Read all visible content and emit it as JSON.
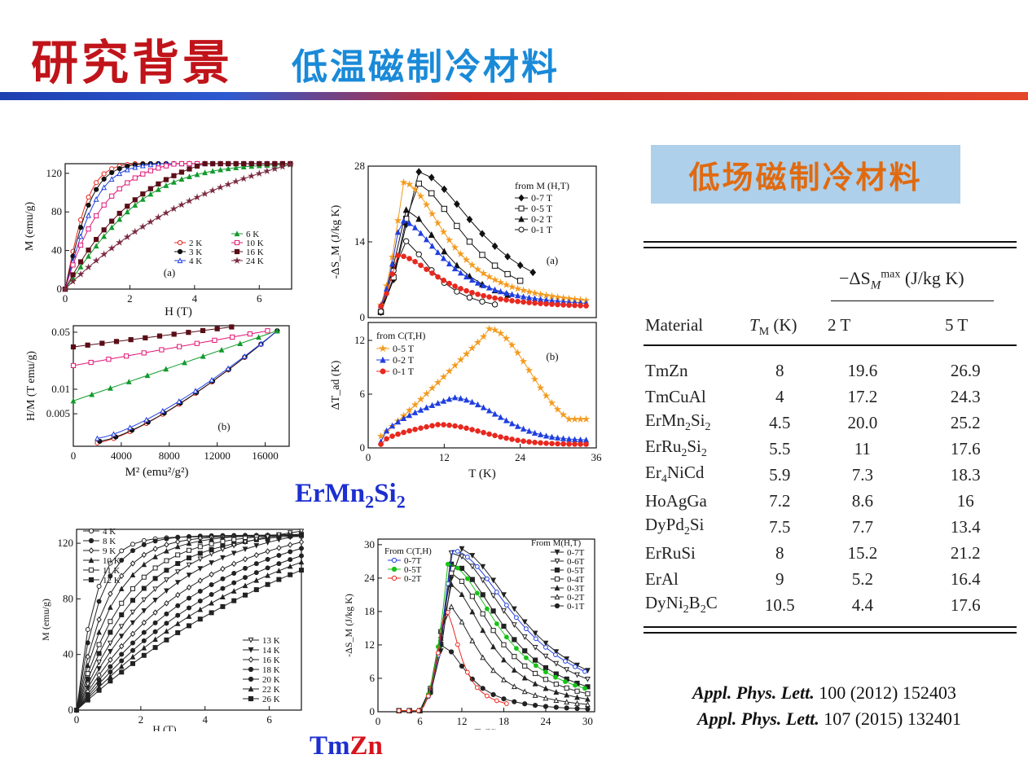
{
  "header": {
    "title": "研究背景",
    "subtitle": "低温磁制冷材料"
  },
  "badge": "低场磁制冷材料",
  "captions": {
    "ermn2si2": [
      "ErMn",
      "2",
      "Si",
      "2"
    ],
    "tmzn_tm": "Tm",
    "tmzn_zn": "Zn"
  },
  "colors": {
    "title_red": "#c0141a",
    "subtitle_blue": "#1a8ad8",
    "badge_bg": "#aed0ea",
    "badge_text": "#e06a10",
    "caption_blue": "#1d2fd0",
    "caption_red": "#d8131c"
  },
  "table": {
    "col_headers": {
      "material": "Material",
      "tm": "T",
      "tm_sub": "M",
      "tm_unit": " (K)",
      "group": "−ΔS",
      "group_sub": "M",
      "group_sup": "max",
      "group_unit": " (J/kg K)",
      "c2": "2 T",
      "c3": "5 T"
    },
    "rows": [
      {
        "m": [
          "TmZn"
        ],
        "tm": "8",
        "v2": "19.6",
        "v5": "26.9"
      },
      {
        "m": [
          "TmCuAl"
        ],
        "tm": "4",
        "v2": "17.2",
        "v5": "24.3"
      },
      {
        "m": [
          "ErMn",
          "2",
          "Si",
          "2"
        ],
        "tm": "4.5",
        "v2": "20.0",
        "v5": "25.2"
      },
      {
        "m": [
          "ErRu",
          "2",
          "Si",
          "2"
        ],
        "tm": "5.5",
        "v2": "11",
        "v5": "17.6"
      },
      {
        "m": [
          "Er",
          "4",
          "NiCd"
        ],
        "tm": "5.9",
        "v2": "7.3",
        "v5": "18.3"
      },
      {
        "m": [
          "HoAgGa"
        ],
        "tm": "7.2",
        "v2": "8.6",
        "v5": "16"
      },
      {
        "m": [
          "DyPd",
          "2",
          "Si"
        ],
        "tm": "7.5",
        "v2": "7.7",
        "v5": "13.4"
      },
      {
        "m": [
          "ErRuSi"
        ],
        "tm": "8",
        "v2": "15.2",
        "v5": "21.2"
      },
      {
        "m": [
          "ErAl"
        ],
        "tm": "9",
        "v2": "5.2",
        "v5": "16.4"
      },
      {
        "m": [
          "DyNi",
          "2",
          "B",
          "2",
          "C"
        ],
        "tm": "10.5",
        "v2": "4.4",
        "v5": "17.6"
      }
    ]
  },
  "references": [
    {
      "journal": "Appl. Phys. Lett.",
      "detail": " 100 (2012) 152403"
    },
    {
      "journal": "Appl. Phys. Lett.",
      "detail": " 107 (2015) 132401"
    }
  ],
  "chart_data": [
    {
      "type": "line",
      "id": "ermn-mh",
      "xlabel": "H (T)",
      "ylabel": "M (emu/g)",
      "xlim": [
        0,
        7
      ],
      "ylim": [
        0,
        130
      ],
      "xticks": [
        0,
        2,
        4,
        6
      ],
      "yticks": [
        0,
        40,
        80,
        120
      ],
      "panel_label": "(a)",
      "series": [
        {
          "name": "2 K",
          "color": "#e8281e",
          "marker": "circle-open",
          "Ms": 131,
          "a": 0.13
        },
        {
          "name": "3 K",
          "color": "#111111",
          "marker": "circle-filled",
          "Ms": 131,
          "a": 0.15
        },
        {
          "name": "4 K",
          "color": "#1f3ee0",
          "marker": "triangle-open",
          "Ms": 131,
          "a": 0.18
        },
        {
          "name": "6 K",
          "color": "#139a2c",
          "marker": "triangle-filled",
          "Ms": 131,
          "a": 0.45
        },
        {
          "name": "10 K",
          "color": "#e21577",
          "marker": "square-open",
          "Ms": 138,
          "a": 1.2
        },
        {
          "name": "16 K",
          "color": "#5a0e18",
          "marker": "square-filled",
          "Ms": 156,
          "a": 2.4
        },
        {
          "name": "24 K",
          "color": "#7a2a40",
          "marker": "star",
          "Ms": 175,
          "a": 5.2
        }
      ]
    },
    {
      "type": "line",
      "id": "ermn-arrott",
      "xlabel": "M² (emu²/g²)",
      "ylabel": "H/M (T emu/g)",
      "xlim": [
        0,
        18000
      ],
      "ylim": [
        0.002,
        0.06
      ],
      "yscale": "log",
      "xticks": [
        0,
        4000,
        8000,
        12000,
        16000
      ],
      "yticks": [
        0.005,
        0.01,
        0.05
      ],
      "panel_label": "(b)"
    },
    {
      "type": "line",
      "id": "ermn-ds",
      "xlabel": "",
      "ylabel": "-ΔS_M (J/kg K)",
      "xlim": [
        0,
        36
      ],
      "ylim": [
        0,
        28
      ],
      "yticks": [
        0,
        14,
        28
      ],
      "panel_label": "(a)",
      "legend_title": "from M (H,T)",
      "series": [
        {
          "name": "0-7 T",
          "color": "#111111",
          "marker": "diamond-filled",
          "peakT": 7.5,
          "peak": 26.5
        },
        {
          "name": "0-5 T",
          "color": "#111111",
          "marker": "square-open",
          "peakT": 7,
          "peak": 24.5
        },
        {
          "name": "0-2 T",
          "color": "#111111",
          "marker": "triangle-filled",
          "peakT": 5.5,
          "peak": 19.5
        },
        {
          "name": "0-1 T",
          "color": "#111111",
          "marker": "circle-open",
          "peakT": 5,
          "peak": 14
        },
        {
          "name": "",
          "color": "#f39a1e",
          "marker": "star",
          "peakT": 5.5,
          "peak": 23.5
        },
        {
          "name": "",
          "color": "#1f3ee0",
          "marker": "triangle-filled",
          "peakT": 5,
          "peak": 16.5
        },
        {
          "name": "",
          "color": "#e8281e",
          "marker": "circle-filled",
          "peakT": 4.5,
          "peak": 10
        }
      ]
    },
    {
      "type": "line",
      "id": "ermn-dt",
      "xlabel": "T (K)",
      "ylabel": "ΔT_ad (K)",
      "xlim": [
        0,
        36
      ],
      "ylim": [
        0,
        14
      ],
      "xticks": [
        0,
        12,
        24,
        36
      ],
      "yticks": [
        0,
        6,
        12
      ],
      "panel_label": "(b)",
      "legend_title": "from C(T,H)",
      "series": [
        {
          "name": "0-5 T",
          "color": "#f39a1e",
          "marker": "star",
          "peakT": 19,
          "peak": 13
        },
        {
          "name": "0-2 T",
          "color": "#1f3ee0",
          "marker": "triangle-filled",
          "peakT": 13,
          "peak": 5.5
        },
        {
          "name": "0-1 T",
          "color": "#e8281e",
          "marker": "circle-filled",
          "peakT": 11,
          "peak": 2.6
        }
      ]
    },
    {
      "type": "line",
      "id": "tmzn-mh",
      "xlabel": "H (T)",
      "ylabel": "M (emu/g)",
      "xlim": [
        0,
        7
      ],
      "ylim": [
        0,
        130
      ],
      "xticks": [
        0,
        2,
        4,
        6
      ],
      "yticks": [
        0,
        40,
        80,
        120
      ],
      "series": [
        {
          "name": "4 K",
          "marker": "circle-open"
        },
        {
          "name": "8 K",
          "marker": "circle-filled"
        },
        {
          "name": "9 K",
          "marker": "diamond-open"
        },
        {
          "name": "10 K",
          "marker": "triangle-filled"
        },
        {
          "name": "11 K",
          "marker": "square-open"
        },
        {
          "name": "12 K",
          "marker": "square-filled"
        },
        {
          "name": "13 K",
          "marker": "triangle-down-open"
        },
        {
          "name": "14 K",
          "marker": "triangle-down-filled"
        },
        {
          "name": "16 K",
          "marker": "diamond-open"
        },
        {
          "name": "18 K",
          "marker": "circle-filled"
        },
        {
          "name": "20 K",
          "marker": "hexagon"
        },
        {
          "name": "22 K",
          "marker": "triangle-filled"
        },
        {
          "name": "26 K",
          "marker": "square-cross"
        }
      ]
    },
    {
      "type": "line",
      "id": "tmzn-ds",
      "xlabel": "T (K)",
      "ylabel": "-ΔS_M (J/kg K)",
      "xlim": [
        0,
        31
      ],
      "ylim": [
        0,
        31
      ],
      "xticks": [
        0,
        6,
        12,
        18,
        24,
        30
      ],
      "yticks": [
        0,
        6,
        12,
        18,
        24,
        30
      ],
      "legend_c_title": "From C(T,H)",
      "legend_m_title": "From M(H,T)",
      "series_c": [
        {
          "name": "0-7T",
          "color": "#1f3ee0",
          "marker": "circle-open",
          "peakT": 10.5,
          "peak": 29
        },
        {
          "name": "0-5T",
          "color": "#18c218",
          "marker": "circle-filled",
          "peakT": 10,
          "peak": 26.5
        },
        {
          "name": "0-2T",
          "color": "#e8281e",
          "marker": "circle-open",
          "peakT": 9.5,
          "peak": 18.5
        }
      ],
      "series_m": [
        {
          "name": "0-7T",
          "marker": "triangle-down-filled",
          "peakT": 11,
          "peak": 29.5
        },
        {
          "name": "0-6T",
          "marker": "triangle-down-open",
          "peakT": 10.5,
          "peak": 28.5
        },
        {
          "name": "0-5T",
          "marker": "square-filled",
          "peakT": 10.5,
          "peak": 26.5
        },
        {
          "name": "0-4T",
          "marker": "square-open",
          "peakT": 10,
          "peak": 25
        },
        {
          "name": "0-3T",
          "marker": "triangle-filled",
          "peakT": 10,
          "peak": 23
        },
        {
          "name": "0-2T",
          "marker": "triangle-open",
          "peakT": 9.5,
          "peak": 19.5
        },
        {
          "name": "0-1T",
          "marker": "circle-filled",
          "peakT": 9,
          "peak": 12
        }
      ]
    }
  ]
}
